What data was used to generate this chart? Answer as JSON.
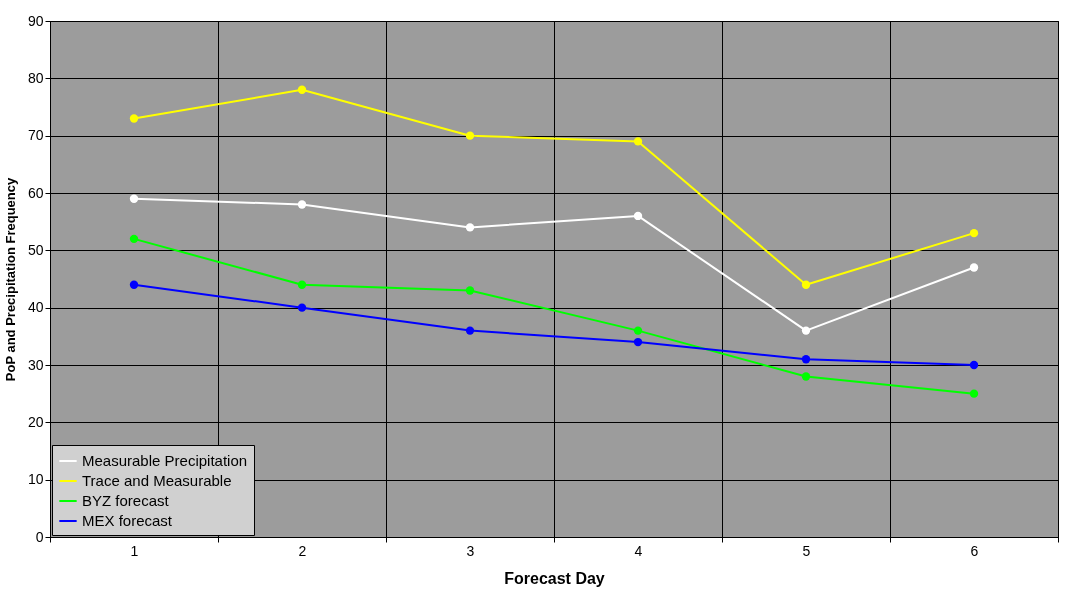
{
  "chart_data": {
    "type": "line",
    "xlabel": "Forecast Day",
    "ylabel": "PoP and Precipitation Frequency",
    "categories": [
      "1",
      "2",
      "3",
      "4",
      "5",
      "6"
    ],
    "series": [
      {
        "name": "Measurable Precipitation",
        "color": "#ffffff",
        "values": [
          59,
          58,
          54,
          56,
          36,
          47
        ]
      },
      {
        "name": "Trace and Measurable",
        "color": "#ffff00",
        "values": [
          73,
          78,
          70,
          69,
          44,
          53
        ]
      },
      {
        "name": "BYZ forecast",
        "color": "#00ff00",
        "values": [
          52,
          44,
          43,
          36,
          28,
          25
        ]
      },
      {
        "name": "MEX forecast",
        "color": "#0000ff",
        "values": [
          44,
          40,
          36,
          34,
          31,
          30
        ]
      }
    ],
    "ylim": [
      0,
      90
    ],
    "yticks": [
      0,
      10,
      20,
      30,
      40,
      50,
      60,
      70,
      80,
      90
    ],
    "grid": true,
    "legend": "bottom left",
    "marker": "circle",
    "line_style": "solid"
  }
}
